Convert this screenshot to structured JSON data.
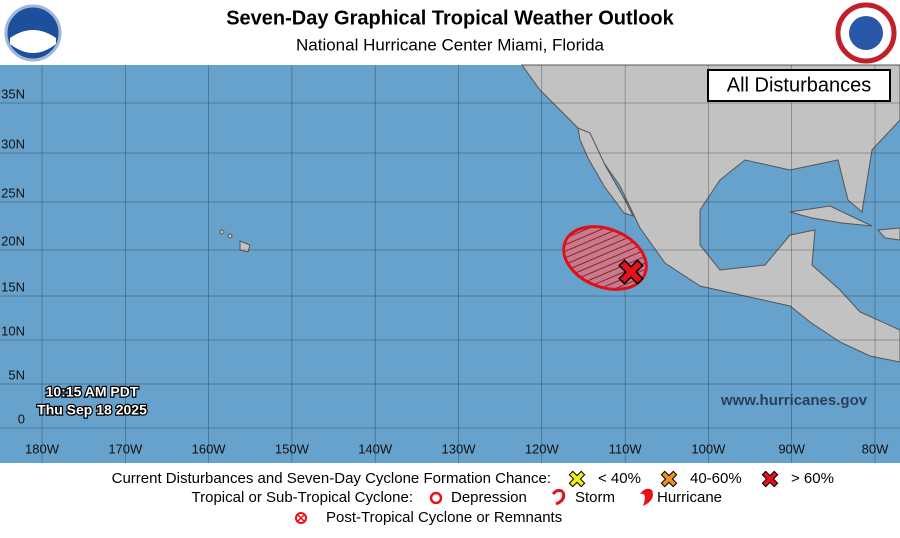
{
  "header": {
    "title": "Seven-Day Graphical Tropical Weather Outlook",
    "subtitle": "National Hurricane Center  Miami, Florida"
  },
  "map": {
    "label": "All Disturbances",
    "lat_labels": [
      "35N",
      "30N",
      "25N",
      "20N",
      "15N",
      "10N",
      "5N",
      "0"
    ],
    "lon_labels": [
      "180W",
      "170W",
      "160W",
      "150W",
      "140W",
      "130W",
      "120W",
      "110W",
      "100W",
      "90W",
      "80W"
    ],
    "timestamp": [
      "10:15 AM PDT",
      "Thu Sep 18 2025"
    ],
    "website": "www.hurricanes.gov"
  },
  "legend": {
    "formation_title": "Current Disturbances and Seven-Day Cyclone Formation Chance:",
    "formation_items": [
      "< 40%",
      "40-60%",
      "> 60%"
    ],
    "cyclone_title": "Tropical or Sub-Tropical Cyclone:",
    "cyclone_items": [
      "Depression",
      "Storm",
      "Hurricane"
    ],
    "post_tropical": "Post-Tropical Cyclone or Remnants"
  }
}
